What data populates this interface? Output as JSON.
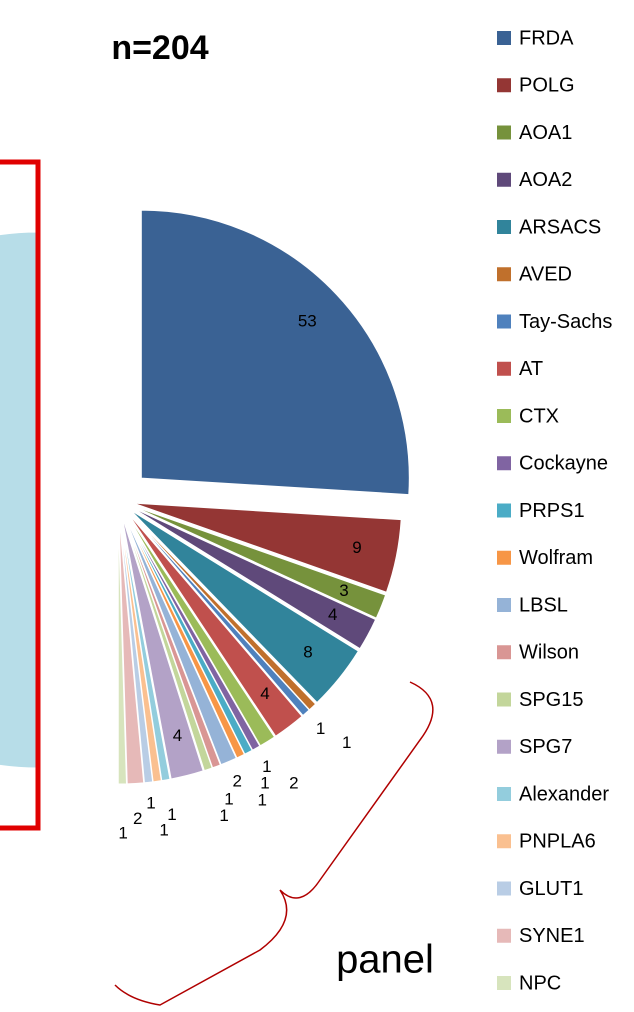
{
  "chart_data": {
    "type": "pie",
    "subtitle": "n=204",
    "categories": [
      "FRDA",
      "POLG",
      "AOA1",
      "AOA2",
      "ARSACS",
      "AVED",
      "Tay-Sachs",
      "AT",
      "CTX",
      "Cockayne",
      "PRPS1",
      "Wolfram",
      "LBSL",
      "Wilson",
      "SPG15",
      "SPG7",
      "Alexander",
      "PNPLA6",
      "GLUT1",
      "SYNE1",
      "NPC",
      null
    ],
    "values": [
      53,
      9,
      3,
      4,
      8,
      1,
      1,
      4,
      2,
      1,
      1,
      1,
      2,
      1,
      1,
      4,
      1,
      1,
      1,
      2,
      1,
      102
    ],
    "colors": [
      "#3a6294",
      "#943634",
      "#76923c",
      "#5f497a",
      "#31849b",
      "#c0702c",
      "#4f81bd",
      "#c0504d",
      "#9bbb59",
      "#8064a2",
      "#4bacc6",
      "#f79646",
      "#95b3d7",
      "#d99694",
      "#c3d69b",
      "#b3a2c7",
      "#93cddd",
      "#fac090",
      "#b9cde5",
      "#e6b9b8",
      "#d7e4bd",
      "#b7dde8"
    ],
    "legend": "right",
    "annotation": "panel"
  }
}
